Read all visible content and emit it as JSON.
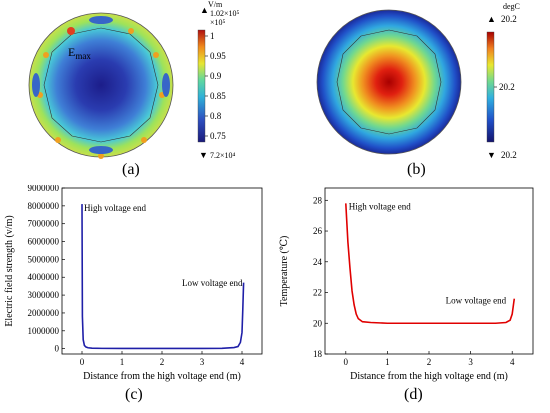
{
  "panel_labels": {
    "a": "(a)",
    "b": "(b)",
    "c": "(c)",
    "d": "(d)"
  },
  "panel_a": {
    "unit": "V/m",
    "max_marker": "▲",
    "max_value": "1.02×10⁵",
    "scale_note": "×10⁵",
    "min_marker": "▼",
    "min_value": "7.2×10⁴",
    "ticks": [
      "1",
      "0.95",
      "0.9",
      "0.85",
      "0.8",
      "0.75"
    ],
    "annotation": "E",
    "annotation_sub": "max"
  },
  "panel_b": {
    "unit": "degC",
    "max_marker": "▲",
    "max_value": "20.2",
    "mid_tick": "20.2",
    "min_marker": "▼",
    "min_value": "20.2"
  },
  "chart_data": [
    {
      "type": "line",
      "panel": "c",
      "xlabel": "Distance from the high voltage end (m)",
      "ylabel": "Electric field strength (v/m)",
      "xlim": [
        -0.5,
        4.5
      ],
      "ylim": [
        -300000,
        9000000
      ],
      "xticks": [
        0,
        1,
        2,
        3,
        4
      ],
      "yticks": [
        0,
        1000000,
        2000000,
        3000000,
        4000000,
        5000000,
        6000000,
        7000000,
        8000000,
        9000000
      ],
      "color": "#1f1fa8",
      "x": [
        0.0,
        0.01,
        0.03,
        0.06,
        0.1,
        0.15,
        0.25,
        0.5,
        1.0,
        2.0,
        3.0,
        3.5,
        3.8,
        3.9,
        3.96,
        4.0,
        4.02,
        4.04
      ],
      "y": [
        8100000,
        1800000,
        500000,
        180000,
        90000,
        50000,
        25000,
        15000,
        10000,
        10000,
        10000,
        20000,
        60000,
        120000,
        350000,
        900000,
        2200000,
        3700000
      ],
      "annotations": [
        {
          "text": "High voltage end",
          "x": 0.05,
          "y": 7700000
        },
        {
          "text": "Low voltage end",
          "x": 2.5,
          "y": 3500000
        }
      ]
    },
    {
      "type": "line",
      "panel": "d",
      "xlabel": "Distance from the high voltage end (m)",
      "ylabel": "Temperature (℃)",
      "xlim": [
        -0.5,
        4.5
      ],
      "ylim": [
        18,
        28.8
      ],
      "xticks": [
        0,
        1,
        2,
        3,
        4
      ],
      "yticks": [
        18,
        20,
        22,
        24,
        26,
        28
      ],
      "color": "#e00000",
      "x": [
        0.0,
        0.02,
        0.05,
        0.1,
        0.15,
        0.2,
        0.25,
        0.3,
        0.4,
        0.6,
        1.0,
        2.0,
        3.0,
        3.6,
        3.85,
        3.95,
        4.0,
        4.03,
        4.05
      ],
      "y": [
        27.8,
        26.8,
        25.3,
        23.6,
        22.1,
        21.2,
        20.6,
        20.3,
        20.1,
        20.05,
        20.0,
        20.0,
        20.0,
        20.0,
        20.05,
        20.2,
        20.6,
        21.2,
        21.6
      ],
      "annotations": [
        {
          "text": "High voltage end",
          "x": 0.07,
          "y": 27.4
        },
        {
          "text": "Low voltage end",
          "x": 2.4,
          "y": 21.3
        }
      ]
    }
  ]
}
